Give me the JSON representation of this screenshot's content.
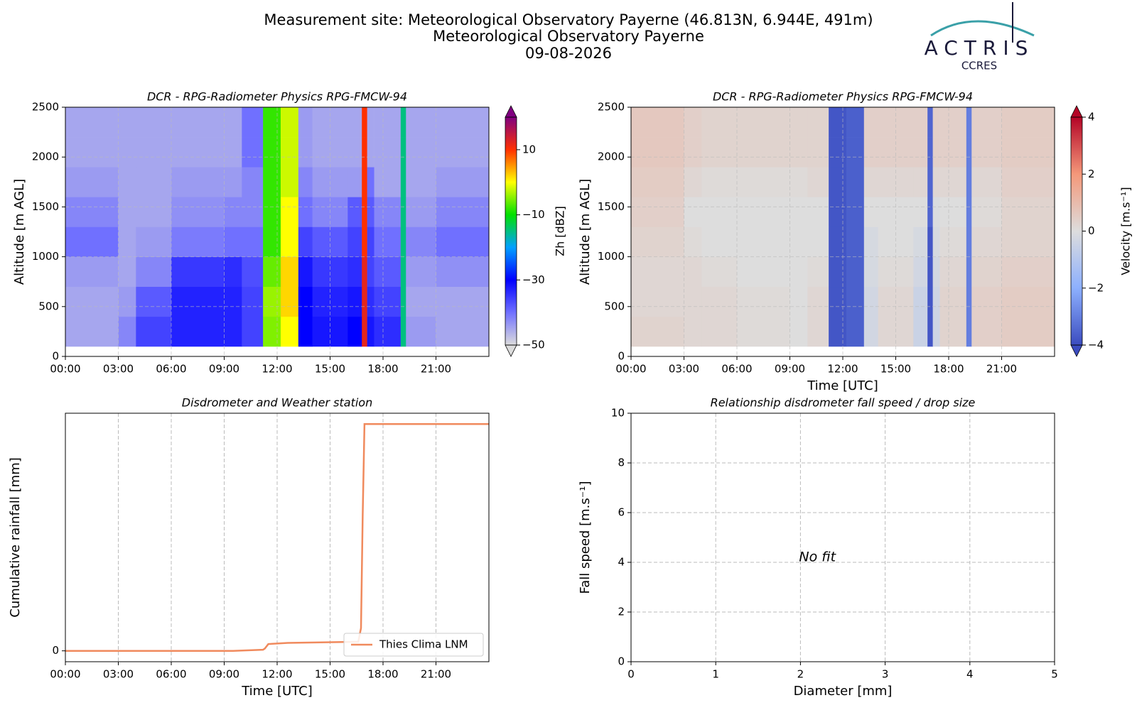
{
  "header": {
    "title": "Measurement site: Meteorological Observatory Payerne (46.813N, 6.944E, 491m)",
    "subtitle": "Meteorological Observatory Payerne",
    "date": "09-08-2026",
    "logo": "ACTRIS",
    "logo_sub": "CCRES"
  },
  "chart_data": [
    {
      "type": "heatmap",
      "title": "DCR - RPG-Radiometer Physics RPG-FMCW-94",
      "ylabel": "Altitude [m AGL]",
      "colorbar_label": "Zh [dBZ]",
      "xlim": [
        0,
        24
      ],
      "ylim": [
        0,
        2500
      ],
      "xticks": [
        {
          "value": 0,
          "label": "00:00"
        },
        {
          "value": 3,
          "label": "03:00"
        },
        {
          "value": 6,
          "label": "06:00"
        },
        {
          "value": 9,
          "label": "09:00"
        },
        {
          "value": 12,
          "label": "12:00"
        },
        {
          "value": 15,
          "label": "15:00"
        },
        {
          "value": 18,
          "label": "18:00"
        },
        {
          "value": 21,
          "label": "21:00"
        }
      ],
      "yticks": [
        0,
        500,
        1000,
        1500,
        2000,
        2500
      ],
      "x_edges": [
        0,
        3,
        4,
        6,
        9,
        10,
        11.2,
        12.2,
        13.2,
        14,
        16,
        16.8,
        17.1,
        17.5,
        19,
        19.3,
        21,
        24
      ],
      "y_edges": [
        100,
        400,
        700,
        1000,
        1300,
        1600,
        1900,
        2200,
        2500
      ],
      "z": [
        [
          -45,
          -42,
          -36,
          -33,
          -33,
          -36,
          -5,
          0,
          -30,
          -32,
          -30,
          12,
          -32,
          -34,
          -15,
          -44,
          -45
        ],
        [
          -45,
          -44,
          -38,
          -33,
          -33,
          -36,
          -4,
          2,
          -30,
          -33,
          -32,
          12,
          -34,
          -36,
          -15,
          -45,
          -45
        ],
        [
          -44,
          -45,
          -42,
          -35,
          -34,
          -37,
          -6,
          2,
          -32,
          -35,
          -34,
          12,
          -36,
          -38,
          -15,
          -44,
          -43
        ],
        [
          -40,
          -45,
          -44,
          -41,
          -40,
          -40,
          -8,
          0,
          -36,
          -38,
          -36,
          10,
          -36,
          -40,
          -15,
          -42,
          -40
        ],
        [
          -42,
          -45,
          -45,
          -43,
          -42,
          -42,
          -8,
          0,
          -40,
          -42,
          -38,
          10,
          -38,
          -42,
          -15,
          -44,
          -42
        ],
        [
          -44,
          -45,
          -45,
          -44,
          -44,
          -42,
          -8,
          -2,
          -42,
          -44,
          -44,
          10,
          -40,
          -45,
          -15,
          -45,
          -44
        ],
        [
          -45,
          -45,
          -45,
          -45,
          -45,
          -40,
          -8,
          -2,
          -44,
          -45,
          -45,
          10,
          -45,
          -45,
          -15,
          -45,
          -45
        ],
        [
          -45,
          -45,
          -45,
          -45,
          -45,
          -40,
          -8,
          -2,
          -44,
          -45,
          -45,
          10,
          -45,
          -45,
          -15,
          -45,
          -45
        ]
      ],
      "clim": [
        -50,
        20
      ],
      "cticks": [
        {
          "value": -50,
          "label": "−50"
        },
        {
          "value": -30,
          "label": "−30"
        },
        {
          "value": -10,
          "label": "−10"
        },
        10
      ],
      "colormap": [
        "#dcdcdc",
        "#7070ff",
        "#0000ff",
        "#00a0ff",
        "#00e000",
        "#ffff00",
        "#ff3000",
        "#800080"
      ],
      "grid": "both"
    },
    {
      "type": "heatmap",
      "title": "DCR - RPG-Radiometer Physics RPG-FMCW-94",
      "xlabel": "Time [UTC]",
      "ylabel": "Altitude [m AGL]",
      "colorbar_label": "Velocity [m.s⁻¹]",
      "xlim": [
        0,
        24
      ],
      "ylim": [
        0,
        2500
      ],
      "xticks": [
        {
          "value": 0,
          "label": "00:00"
        },
        {
          "value": 3,
          "label": "03:00"
        },
        {
          "value": 6,
          "label": "06:00"
        },
        {
          "value": 9,
          "label": "09:00"
        },
        {
          "value": 12,
          "label": "12:00"
        },
        {
          "value": 15,
          "label": "15:00"
        },
        {
          "value": 18,
          "label": "18:00"
        },
        {
          "value": 21,
          "label": "21:00"
        }
      ],
      "yticks": [
        0,
        500,
        1000,
        1500,
        2000,
        2500
      ],
      "x_edges": [
        0,
        3,
        4,
        6,
        9,
        10,
        11.2,
        12.2,
        13.2,
        14,
        16,
        16.8,
        17.1,
        17.5,
        19,
        19.3,
        21,
        24
      ],
      "y_edges": [
        100,
        400,
        700,
        1000,
        1300,
        1600,
        1900,
        2200,
        2500
      ],
      "z": [
        [
          0.3,
          0.2,
          0.2,
          0.1,
          0,
          0.2,
          -3.8,
          -3.6,
          -0.3,
          0.2,
          -0.5,
          -3.8,
          -0.4,
          0.3,
          -3,
          0.4,
          0.5
        ],
        [
          0.2,
          0.2,
          0.2,
          0.1,
          0,
          0.2,
          -3.8,
          -3.6,
          -0.3,
          0.2,
          -0.5,
          -3.8,
          -0.4,
          0.3,
          -3,
          0.4,
          0.5
        ],
        [
          0.2,
          0.2,
          0.1,
          0,
          0,
          0.1,
          -3.8,
          -3.6,
          -0.2,
          0.1,
          -0.3,
          -3.8,
          -0.3,
          0.2,
          -3,
          0.3,
          0.4
        ],
        [
          0.3,
          0.1,
          0,
          0,
          0,
          0,
          -3.8,
          -3.6,
          -0.2,
          0,
          -0.2,
          -3.8,
          -0.2,
          0.1,
          -3,
          0.2,
          0.3
        ],
        [
          0.4,
          0,
          0,
          0,
          0,
          0,
          -3.8,
          -3.6,
          0,
          0,
          0,
          -3.5,
          -0.1,
          0,
          -3,
          0.1,
          0.3
        ],
        [
          0.5,
          0.2,
          0.1,
          0.1,
          0.1,
          0.2,
          -3.8,
          -3.6,
          0.2,
          0.2,
          0.2,
          -3.5,
          0.2,
          0.2,
          -3,
          0.2,
          0.4
        ],
        [
          0.6,
          0.4,
          0.3,
          0.3,
          0.3,
          0.3,
          -3.8,
          -3.6,
          0.4,
          0.4,
          0.4,
          -3.5,
          0.4,
          0.4,
          -3,
          0.4,
          0.5
        ],
        [
          0.6,
          0.4,
          0.3,
          0.3,
          0.3,
          0.3,
          -3.8,
          -3.6,
          0.4,
          0.4,
          0.4,
          -3.5,
          0.4,
          0.4,
          -3,
          0.4,
          0.5
        ]
      ],
      "clim": [
        -4,
        4
      ],
      "cticks": [
        {
          "value": -4,
          "label": "−4"
        },
        {
          "value": -2,
          "label": "−2"
        },
        0,
        2,
        4
      ],
      "colormap": [
        "#3b4cc0",
        "#8db0fe",
        "#dddddd",
        "#f4987a",
        "#b40426"
      ],
      "grid": "both"
    },
    {
      "type": "line",
      "title": "Disdrometer and Weather station",
      "xlabel": "Time [UTC]",
      "ylabel": "Cumulative rainfall [mm]",
      "xlim": [
        0,
        24
      ],
      "ylim": [
        -0.48,
        10.48
      ],
      "xticks": [
        {
          "value": 0,
          "label": "00:00"
        },
        {
          "value": 3,
          "label": "03:00"
        },
        {
          "value": 6,
          "label": "06:00"
        },
        {
          "value": 9,
          "label": "09:00"
        },
        {
          "value": 12,
          "label": "12:00"
        },
        {
          "value": 15,
          "label": "15:00"
        },
        {
          "value": 18,
          "label": "18:00"
        },
        {
          "value": 21,
          "label": "21:00"
        }
      ],
      "yticks": [
        0
      ],
      "x": [
        0,
        9.5,
        11.2,
        11.3,
        11.5,
        12.6,
        16.6,
        16.75,
        16.85,
        16.95,
        24
      ],
      "series": [
        {
          "name": "Thies Clima LNM",
          "color": "#f08a5d",
          "values": [
            0,
            0,
            0.05,
            0.1,
            0.3,
            0.35,
            0.4,
            1,
            6,
            10,
            10
          ]
        }
      ],
      "legend": "lower right",
      "grid": "x"
    },
    {
      "type": "scatter",
      "title": "Relationship disdrometer fall speed / drop size",
      "xlabel": "Diameter [mm]",
      "ylabel": "Fall speed [m.s⁻¹]",
      "xlim": [
        0,
        5
      ],
      "ylim": [
        0,
        10
      ],
      "xticks": [
        0,
        1,
        2,
        3,
        4,
        5
      ],
      "yticks": [
        0,
        2,
        4,
        6,
        8,
        10
      ],
      "annotation": "No fit",
      "grid": "both"
    }
  ]
}
